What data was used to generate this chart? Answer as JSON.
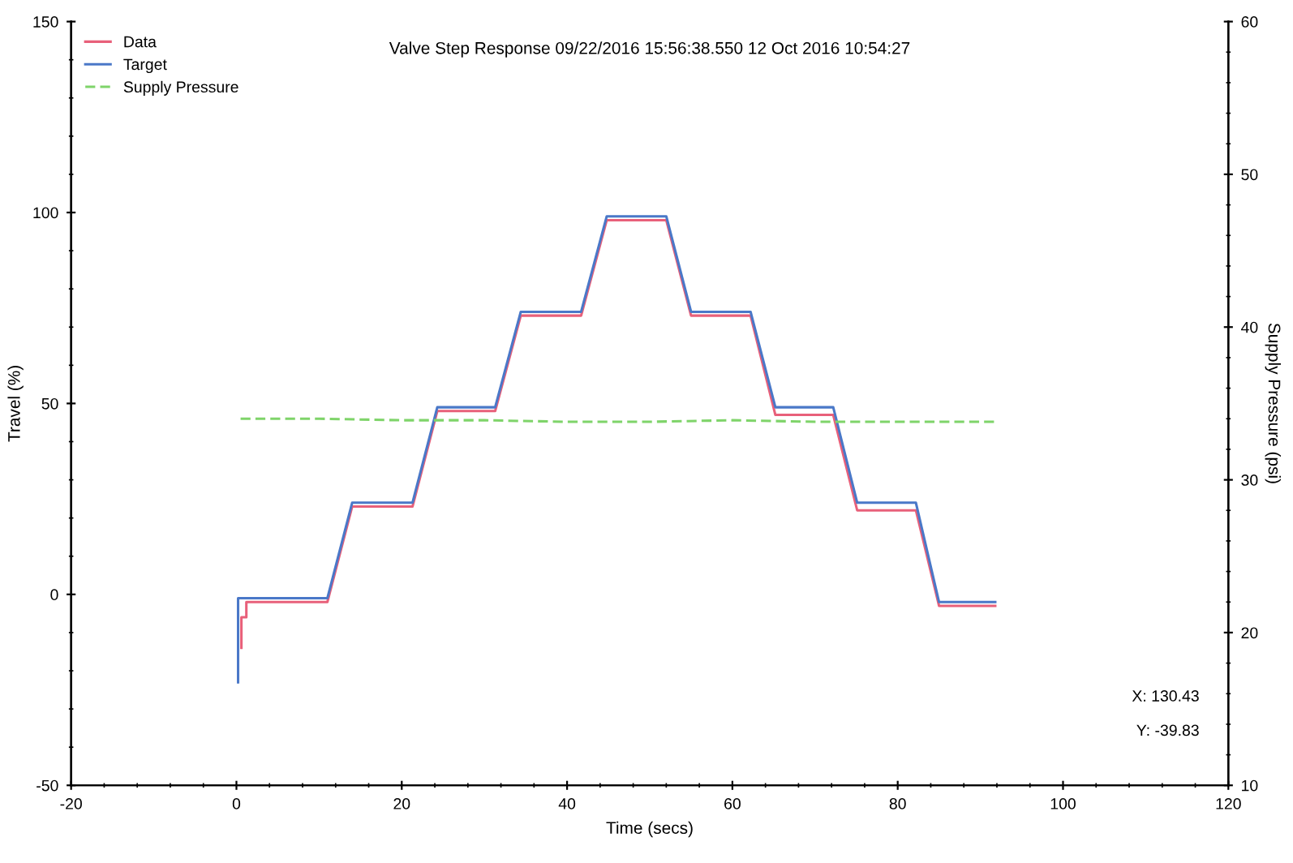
{
  "chart_data": {
    "type": "line",
    "title": "Valve Step Response 09/22/2016 15:56:38.550 12 Oct 2016 10:54:27",
    "xlabel": "Time (secs)",
    "ylabel": "Travel (%)",
    "y2label": "Supply Pressure (psi)",
    "xlim": [
      -20,
      120
    ],
    "xticks": [
      -20,
      0,
      20,
      40,
      60,
      80,
      100,
      120
    ],
    "ylim": [
      -50,
      150
    ],
    "yticks": [
      -50,
      0,
      50,
      100,
      150
    ],
    "y2lim": [
      10,
      60
    ],
    "y2ticks": [
      10,
      20,
      30,
      40,
      50,
      60
    ],
    "legend": "top left",
    "grid": false,
    "annotations": [
      "X: 130.43",
      "Y: -39.83"
    ],
    "series": [
      {
        "name": "Data",
        "color": "#e8607a",
        "line_style": "solid",
        "x": [
          0.6,
          0.6,
          1.2,
          1.2,
          11,
          14,
          21.3,
          24.3,
          31.3,
          34.4,
          41.7,
          44.8,
          52,
          55,
          62.2,
          65.2,
          72.2,
          75.1,
          82.2,
          85,
          91.8
        ],
        "values": [
          -14,
          -6,
          -6,
          -2,
          -2,
          23,
          23,
          48,
          48,
          73,
          73,
          98,
          98,
          73,
          73,
          47,
          47,
          22,
          22,
          -3,
          -3
        ]
      },
      {
        "name": "Target",
        "color": "#4a78c8",
        "line_style": "solid",
        "x": [
          0.2,
          0.2,
          11,
          14,
          21.3,
          24.3,
          31.3,
          34.4,
          41.7,
          44.8,
          52,
          55,
          62.2,
          65.2,
          72.2,
          75.1,
          82.2,
          85,
          91.8
        ],
        "values": [
          -23,
          -1,
          -1,
          24,
          24,
          49,
          49,
          74,
          74,
          99,
          99,
          74,
          74,
          49,
          49,
          24,
          24,
          -2,
          -2
        ]
      },
      {
        "name": "Supply Pressure",
        "color": "#7fd46a",
        "line_style": "dashed",
        "axis": "y2",
        "x": [
          0.5,
          10,
          20,
          30,
          40,
          50,
          60,
          70,
          80,
          91.8
        ],
        "values": [
          34.0,
          34.0,
          33.9,
          33.9,
          33.8,
          33.8,
          33.9,
          33.8,
          33.8,
          33.8
        ]
      }
    ]
  }
}
